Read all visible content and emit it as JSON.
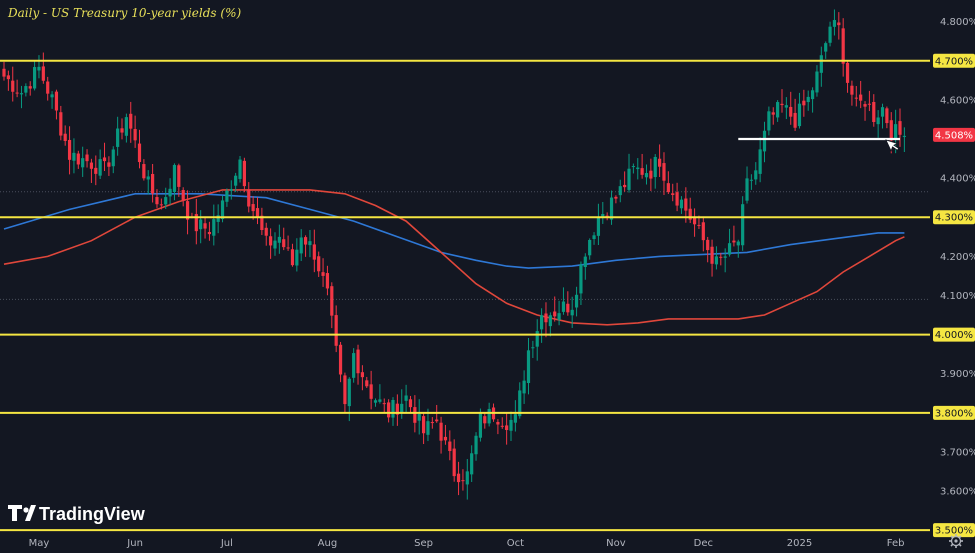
{
  "chart_data": {
    "type": "candlestick",
    "title": "Daily - US Treasury 10-year yields (%)",
    "ylim": [
      3.48,
      4.84
    ],
    "y_ticks": [
      {
        "value": 4.8,
        "label": "4.800%"
      },
      {
        "value": 4.6,
        "label": "4.600%"
      },
      {
        "value": 4.4,
        "label": "4.400%"
      },
      {
        "value": 4.2,
        "label": "4.200%"
      },
      {
        "value": 4.1,
        "label": "4.100%"
      },
      {
        "value": 3.9,
        "label": "3.900%"
      },
      {
        "value": 3.7,
        "label": "3.700%"
      },
      {
        "value": 3.6,
        "label": "3.600%"
      }
    ],
    "x_labels": [
      {
        "label": "May",
        "index": 8
      },
      {
        "label": "Jun",
        "index": 30
      },
      {
        "label": "Jul",
        "index": 51
      },
      {
        "label": "Aug",
        "index": 74
      },
      {
        "label": "Sep",
        "index": 96
      },
      {
        "label": "Oct",
        "index": 117
      },
      {
        "label": "Nov",
        "index": 140
      },
      {
        "label": "Dec",
        "index": 160
      },
      {
        "label": "2025",
        "index": 182
      },
      {
        "label": "Feb",
        "index": 204
      }
    ],
    "horizontal_levels": [
      {
        "value": 4.7,
        "label": "4.700%",
        "color": "#f5e642"
      },
      {
        "value": 4.3,
        "label": "4.300%",
        "color": "#f5e642"
      },
      {
        "value": 4.0,
        "label": "4.000%",
        "color": "#f5e642"
      },
      {
        "value": 3.8,
        "label": "3.800%",
        "color": "#f5e642"
      },
      {
        "value": 3.5,
        "label": "3.500%",
        "color": "#f5e642"
      }
    ],
    "support_line": {
      "value": 4.5,
      "start_index": 168,
      "end_index": 205,
      "color": "#ffffff"
    },
    "last_price": {
      "value": 4.508,
      "label": "4.508%",
      "color": "#f23645"
    },
    "dotted_levels": [
      4.365,
      4.09
    ],
    "close_anchors": [
      [
        0,
        4.66
      ],
      [
        4,
        4.62
      ],
      [
        8,
        4.68
      ],
      [
        11,
        4.6
      ],
      [
        15,
        4.46
      ],
      [
        20,
        4.44
      ],
      [
        23,
        4.42
      ],
      [
        28,
        4.56
      ],
      [
        33,
        4.38
      ],
      [
        36,
        4.33
      ],
      [
        39,
        4.42
      ],
      [
        43,
        4.28
      ],
      [
        47,
        4.27
      ],
      [
        50,
        4.33
      ],
      [
        54,
        4.45
      ],
      [
        56,
        4.35
      ],
      [
        60,
        4.23
      ],
      [
        63,
        4.25
      ],
      [
        66,
        4.18
      ],
      [
        68,
        4.26
      ],
      [
        71,
        4.21
      ],
      [
        74,
        4.1
      ],
      [
        76,
        3.95
      ],
      [
        78,
        3.81
      ],
      [
        80,
        3.95
      ],
      [
        84,
        3.85
      ],
      [
        88,
        3.8
      ],
      [
        92,
        3.84
      ],
      [
        96,
        3.75
      ],
      [
        99,
        3.78
      ],
      [
        103,
        3.65
      ],
      [
        106,
        3.64
      ],
      [
        109,
        3.78
      ],
      [
        112,
        3.8
      ],
      [
        115,
        3.78
      ],
      [
        117,
        3.78
      ],
      [
        120,
        3.96
      ],
      [
        123,
        4.05
      ],
      [
        126,
        4.06
      ],
      [
        130,
        4.08
      ],
      [
        133,
        4.22
      ],
      [
        136,
        4.3
      ],
      [
        140,
        4.35
      ],
      [
        144,
        4.42
      ],
      [
        148,
        4.42
      ],
      [
        150,
        4.45
      ],
      [
        152,
        4.38
      ],
      [
        155,
        4.34
      ],
      [
        157,
        4.3
      ],
      [
        160,
        4.24
      ],
      [
        163,
        4.18
      ],
      [
        165,
        4.2
      ],
      [
        168,
        4.24
      ],
      [
        170,
        4.38
      ],
      [
        172,
        4.42
      ],
      [
        175,
        4.55
      ],
      [
        178,
        4.58
      ],
      [
        181,
        4.55
      ],
      [
        184,
        4.6
      ],
      [
        186,
        4.66
      ],
      [
        187,
        4.7
      ],
      [
        189,
        4.79
      ],
      [
        191,
        4.78
      ],
      [
        193,
        4.65
      ],
      [
        195,
        4.58
      ],
      [
        197,
        4.6
      ],
      [
        199,
        4.56
      ],
      [
        201,
        4.58
      ],
      [
        203,
        4.52
      ],
      [
        205,
        4.51
      ]
    ],
    "moving_averages": [
      {
        "name": "MA blue",
        "color": "#2e78d6",
        "points": [
          [
            0,
            4.27
          ],
          [
            15,
            4.32
          ],
          [
            30,
            4.36
          ],
          [
            45,
            4.36
          ],
          [
            60,
            4.35
          ],
          [
            70,
            4.32
          ],
          [
            80,
            4.29
          ],
          [
            90,
            4.25
          ],
          [
            100,
            4.21
          ],
          [
            108,
            4.19
          ],
          [
            115,
            4.175
          ],
          [
            120,
            4.17
          ],
          [
            130,
            4.175
          ],
          [
            140,
            4.19
          ],
          [
            150,
            4.2
          ],
          [
            160,
            4.205
          ],
          [
            170,
            4.21
          ],
          [
            180,
            4.23
          ],
          [
            190,
            4.245
          ],
          [
            200,
            4.26
          ],
          [
            206,
            4.26
          ]
        ]
      },
      {
        "name": "MA red",
        "color": "#e0473b",
        "points": [
          [
            0,
            4.18
          ],
          [
            10,
            4.2
          ],
          [
            20,
            4.24
          ],
          [
            30,
            4.3
          ],
          [
            40,
            4.34
          ],
          [
            50,
            4.37
          ],
          [
            60,
            4.37
          ],
          [
            70,
            4.37
          ],
          [
            78,
            4.36
          ],
          [
            85,
            4.33
          ],
          [
            92,
            4.29
          ],
          [
            100,
            4.21
          ],
          [
            108,
            4.13
          ],
          [
            115,
            4.08
          ],
          [
            122,
            4.05
          ],
          [
            130,
            4.03
          ],
          [
            138,
            4.025
          ],
          [
            145,
            4.03
          ],
          [
            152,
            4.04
          ],
          [
            160,
            4.04
          ],
          [
            168,
            4.04
          ],
          [
            174,
            4.05
          ],
          [
            180,
            4.08
          ],
          [
            186,
            4.11
          ],
          [
            192,
            4.16
          ],
          [
            198,
            4.2
          ],
          [
            204,
            4.24
          ],
          [
            206,
            4.25
          ]
        ]
      }
    ],
    "colors": {
      "up": "#089981",
      "down": "#f23645",
      "background": "#131722",
      "grid": "#2a2e39"
    }
  },
  "watermark": {
    "brand": "TradingView",
    "logo": "tradingview-logo"
  },
  "controls": {
    "settings_icon": "gear-icon"
  }
}
